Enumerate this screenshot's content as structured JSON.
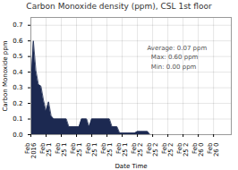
{
  "chart_data": {
    "type": "area",
    "title": "Carbon Monoxide density (ppm), CSL 1st floor",
    "xlabel": "Date Time",
    "ylabel": "Carbon Monoxide ppm",
    "categories": [
      "Feb\n2016",
      null,
      null,
      null,
      null,
      null,
      "Feb\n25 1",
      null,
      null,
      null,
      null,
      null,
      "Feb\n25 1",
      null,
      null,
      null,
      null,
      null,
      "Feb\n25 1",
      null,
      null,
      null,
      null,
      null,
      "Feb\n25 1",
      null,
      null,
      null,
      null,
      null,
      "Feb\n25 1",
      null,
      null,
      null,
      null,
      null,
      "Feb\n25 1",
      null,
      null,
      null,
      null,
      null,
      "Feb\n25 2",
      null,
      null,
      null,
      null,
      null,
      "Feb\n25 2",
      null,
      null,
      null,
      null,
      null,
      "Feb\n25 2",
      null,
      null,
      null,
      null,
      null,
      "Feb\n25 2",
      null,
      null,
      null,
      null,
      null,
      "Feb\n26 0",
      null,
      null,
      null,
      null,
      null,
      "Feb\n26 0",
      null,
      null,
      null,
      null,
      null,
      null,
      null
    ],
    "values": [
      0.3,
      0.6,
      0.41,
      0.32,
      0.31,
      0.22,
      0.15,
      0.21,
      0.12,
      0.1,
      0.1,
      0.1,
      0.1,
      0.1,
      0.1,
      0.05,
      0.05,
      0.05,
      0.05,
      0.05,
      0.1,
      0.1,
      0.1,
      0.05,
      0.1,
      0.1,
      0.1,
      0.1,
      0.1,
      0.1,
      0.1,
      0.1,
      0.05,
      0.05,
      0.05,
      0.01,
      0.01,
      0.01,
      0.01,
      0.01,
      0.01,
      0.01,
      0.02,
      0.02,
      0.02,
      0.02,
      0.02,
      0.0,
      0.0,
      0.0,
      0.0,
      0.0,
      0.0,
      0.0,
      0.0,
      0.0,
      0.0,
      0.0,
      0.0,
      0.0,
      0.0,
      0.0,
      0.0,
      0.0,
      0.0,
      0.0,
      0.0,
      0.0,
      0.0,
      0.0,
      0.0,
      0.0,
      0.0,
      0.0,
      0.0,
      0.0,
      0.0,
      0.0,
      0.0,
      0.0
    ],
    "color": "#1c2951",
    "ylim": [
      0,
      0.75
    ],
    "yticks": [
      {
        "value": 0,
        "label": "0.0"
      },
      0.1,
      0.2,
      0.3,
      0.4,
      0.5,
      0.6,
      0.7
    ],
    "grid": true,
    "annotation": "Average: 0.07 ppm\n  Max: 0.60 ppm\n  Min: 0.00 ppm"
  }
}
